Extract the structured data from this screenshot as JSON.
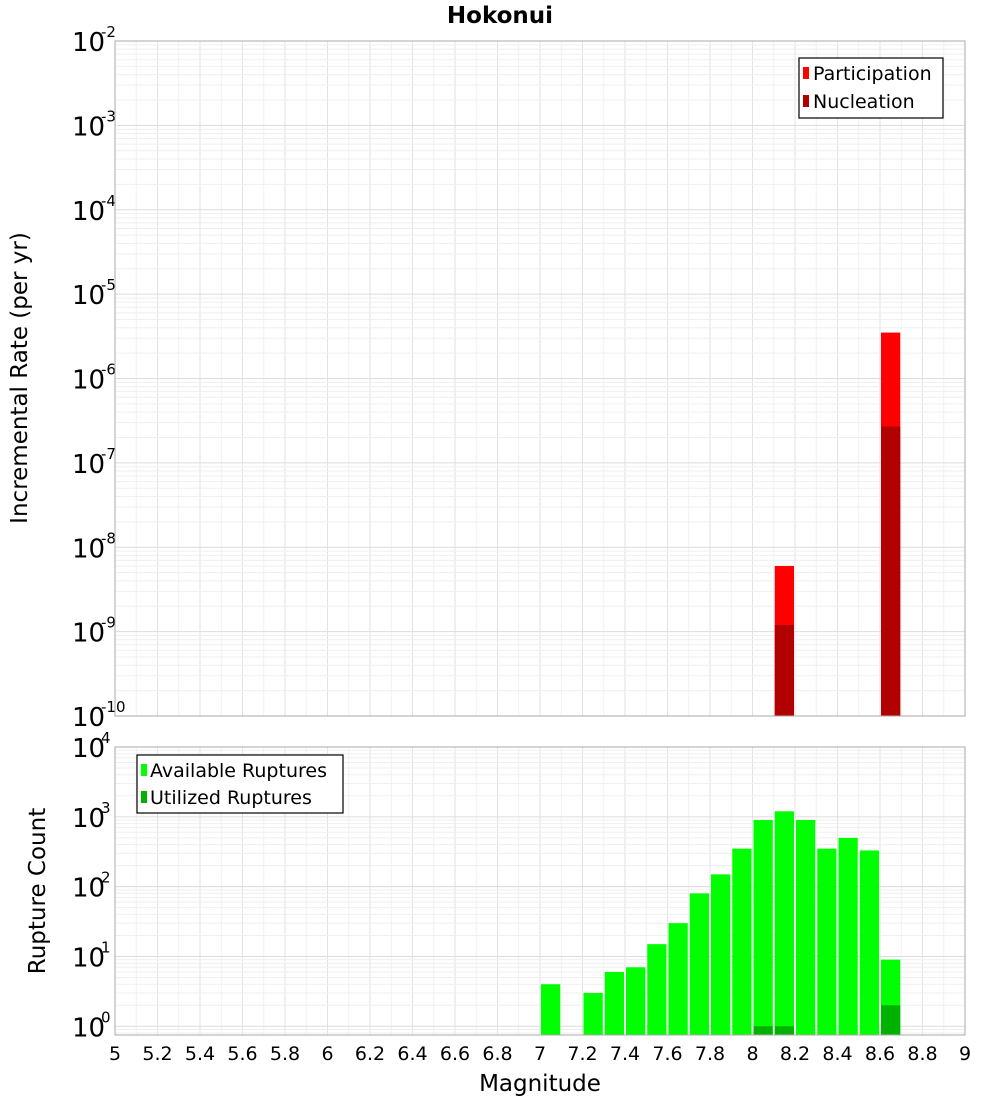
{
  "chart_data": [
    {
      "type": "bar",
      "title": "Hokonui",
      "xlabel": "",
      "ylabel": "Incremental Rate (per yr)",
      "yscale": "log",
      "xlim": [
        5,
        9
      ],
      "ylim": [
        1e-10,
        0.01
      ],
      "y_ticks": [
        {
          "base": "10",
          "exp": "-2",
          "value": 0.01
        },
        {
          "base": "10",
          "exp": "-3",
          "value": 0.001
        },
        {
          "base": "10",
          "exp": "-4",
          "value": 0.0001
        },
        {
          "base": "10",
          "exp": "-5",
          "value": 1e-05
        },
        {
          "base": "10",
          "exp": "-6",
          "value": 1e-06
        },
        {
          "base": "10",
          "exp": "-7",
          "value": 1e-07
        },
        {
          "base": "10",
          "exp": "-8",
          "value": 1e-08
        },
        {
          "base": "10",
          "exp": "-9",
          "value": 1e-09
        },
        {
          "base": "10",
          "exp": "-10",
          "value": 1e-10
        }
      ],
      "bin_width": 0.1,
      "legend_position": "top-right",
      "series": [
        {
          "name": "Participation",
          "color": "#ff0000",
          "x": [
            8.15,
            8.65
          ],
          "values": [
            6e-09,
            3.5e-06
          ]
        },
        {
          "name": "Nucleation",
          "color": "#b20000",
          "x": [
            8.15,
            8.65
          ],
          "values": [
            1.2e-09,
            2.7e-07
          ]
        }
      ]
    },
    {
      "type": "bar",
      "title": "",
      "xlabel": "Magnitude",
      "ylabel": "Rupture Count",
      "yscale": "log",
      "xlim": [
        5,
        9
      ],
      "ylim": [
        0.75,
        10000
      ],
      "x_ticks": [
        "5",
        "5.2",
        "5.4",
        "5.6",
        "5.8",
        "6",
        "6.2",
        "6.4",
        "6.6",
        "6.8",
        "7",
        "7.2",
        "7.4",
        "7.6",
        "7.8",
        "8",
        "8.2",
        "8.4",
        "8.6",
        "8.8",
        "9"
      ],
      "y_ticks": [
        {
          "base": "10",
          "exp": "4",
          "value": 10000
        },
        {
          "base": "10",
          "exp": "3",
          "value": 1000
        },
        {
          "base": "10",
          "exp": "2",
          "value": 100
        },
        {
          "base": "10",
          "exp": "1",
          "value": 10
        },
        {
          "base": "10",
          "exp": "0",
          "value": 1
        }
      ],
      "bin_width": 0.1,
      "legend_position": "top-left",
      "series": [
        {
          "name": "Available Ruptures",
          "color": "#00ff00",
          "x": [
            7.05,
            7.25,
            7.35,
            7.45,
            7.55,
            7.65,
            7.75,
            7.85,
            7.95,
            8.05,
            8.15,
            8.25,
            8.35,
            8.45,
            8.55,
            8.65
          ],
          "values": [
            4,
            3,
            6,
            7,
            15,
            30,
            80,
            150,
            350,
            900,
            1200,
            900,
            350,
            500,
            330,
            9
          ]
        },
        {
          "name": "Utilized Ruptures",
          "color": "#00b200",
          "x": [
            8.05,
            8.15,
            8.65
          ],
          "values": [
            1,
            1,
            2
          ]
        }
      ]
    }
  ]
}
